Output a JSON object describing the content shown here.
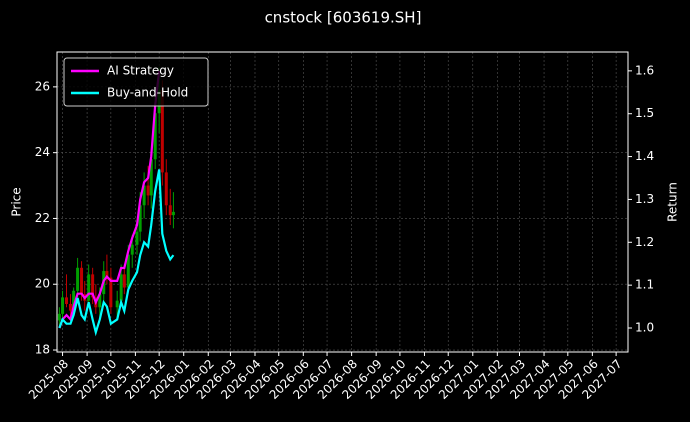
{
  "chart_data": {
    "type": "candlestick",
    "title": "cnstock [603619.SH]",
    "ylabel": "Price",
    "y2label": "Return",
    "x": [
      "2025-07-28",
      "2025-08-01",
      "2025-08-06",
      "2025-08-11",
      "2025-08-15",
      "2025-08-20",
      "2025-08-25",
      "2025-08-29",
      "2025-09-03",
      "2025-09-08",
      "2025-09-12",
      "2025-09-17",
      "2025-09-22",
      "2025-09-26",
      "2025-10-01",
      "2025-10-09",
      "2025-10-14",
      "2025-10-18",
      "2025-10-23",
      "2025-10-28",
      "2025-11-03",
      "2025-11-07",
      "2025-11-12",
      "2025-11-17",
      "2025-11-21",
      "2025-11-26",
      "2025-12-01",
      "2025-12-05",
      "2025-12-10",
      "2025-12-15",
      "2025-12-19"
    ],
    "candles": {
      "open": [
        18.9,
        19.1,
        19.6,
        19.4,
        19.2,
        19.8,
        20.5,
        19.7,
        19.5,
        20.3,
        19.6,
        19.3,
        19.7,
        20.4,
        20.2,
        19.3,
        19.5,
        20.3,
        19.9,
        20.9,
        21.2,
        21.6,
        22.4,
        23.0,
        22.7,
        23.8,
        25.2,
        25.9,
        23.4,
        22.4,
        22.1
      ],
      "high": [
        19.3,
        19.8,
        20.3,
        19.7,
        19.9,
        20.8,
        20.7,
        20.1,
        20.6,
        20.5,
        20.0,
        19.9,
        20.7,
        20.9,
        20.5,
        19.8,
        20.6,
        20.6,
        21.2,
        21.5,
        21.9,
        22.8,
        23.4,
        23.6,
        24.0,
        25.8,
        26.6,
        26.2,
        23.8,
        22.9,
        22.8
      ],
      "low": [
        18.7,
        19.0,
        19.3,
        19.0,
        19.1,
        19.6,
        19.5,
        19.2,
        19.4,
        19.4,
        19.1,
        19.0,
        19.5,
        20.0,
        19.1,
        18.9,
        19.4,
        19.7,
        19.8,
        20.5,
        20.9,
        21.3,
        22.0,
        22.4,
        22.3,
        23.5,
        24.6,
        23.0,
        22.1,
        21.8,
        21.7
      ],
      "close": [
        19.1,
        19.6,
        19.4,
        19.2,
        19.8,
        20.5,
        19.7,
        19.5,
        20.3,
        19.6,
        19.3,
        19.7,
        20.4,
        20.2,
        19.3,
        19.5,
        20.3,
        19.9,
        20.9,
        21.2,
        21.6,
        22.4,
        23.0,
        22.7,
        23.8,
        25.2,
        25.9,
        23.4,
        22.4,
        22.1,
        22.2
      ],
      "up_color": "#00a000",
      "down_color": "#c00000"
    },
    "series": [
      {
        "name": "AI Strategy",
        "color": "#ff00ff",
        "axis": "y2",
        "values": [
          1.0,
          1.02,
          1.03,
          1.02,
          1.05,
          1.08,
          1.08,
          1.07,
          1.08,
          1.08,
          1.06,
          1.08,
          1.11,
          1.12,
          1.11,
          1.11,
          1.14,
          1.14,
          1.18,
          1.21,
          1.24,
          1.3,
          1.34,
          1.35,
          1.4,
          1.52,
          1.6,
          null,
          null,
          null,
          null
        ]
      },
      {
        "name": "Buy-and-Hold",
        "color": "#00ffff",
        "axis": "y2",
        "values": [
          1.0,
          1.02,
          1.01,
          1.01,
          1.03,
          1.07,
          1.03,
          1.02,
          1.06,
          1.02,
          0.99,
          1.02,
          1.06,
          1.05,
          1.01,
          1.02,
          1.06,
          1.04,
          1.09,
          1.11,
          1.13,
          1.17,
          1.2,
          1.19,
          1.24,
          1.32,
          1.37,
          1.22,
          1.18,
          1.16,
          1.17
        ]
      }
    ],
    "xlim": [
      "2025-07-25",
      "2027-07-16"
    ],
    "xticks": [
      "2025-08",
      "2025-09",
      "2025-10",
      "2025-11",
      "2025-12",
      "2026-01",
      "2026-02",
      "2026-03",
      "2026-04",
      "2026-05",
      "2026-06",
      "2026-07",
      "2026-08",
      "2026-09",
      "2026-10",
      "2026-11",
      "2026-12",
      "2027-01",
      "2027-02",
      "2027-03",
      "2027-04",
      "2027-05",
      "2027-06",
      "2027-07"
    ],
    "ylim": [
      17.94,
      27.06
    ],
    "yticks": [
      18,
      20,
      22,
      24,
      26
    ],
    "y2lim": [
      0.944,
      1.644
    ],
    "y2ticks": [
      {
        "value": 1,
        "label": "1.0"
      },
      {
        "value": 1.1,
        "label": "1.1"
      },
      {
        "value": 1.2,
        "label": "1.2"
      },
      {
        "value": 1.3,
        "label": "1.3"
      },
      {
        "value": 1.4,
        "label": "1.4"
      },
      {
        "value": 1.5,
        "label": "1.5"
      },
      {
        "value": 1.6,
        "label": "1.6"
      }
    ],
    "grid": true,
    "legend": "upper left"
  }
}
